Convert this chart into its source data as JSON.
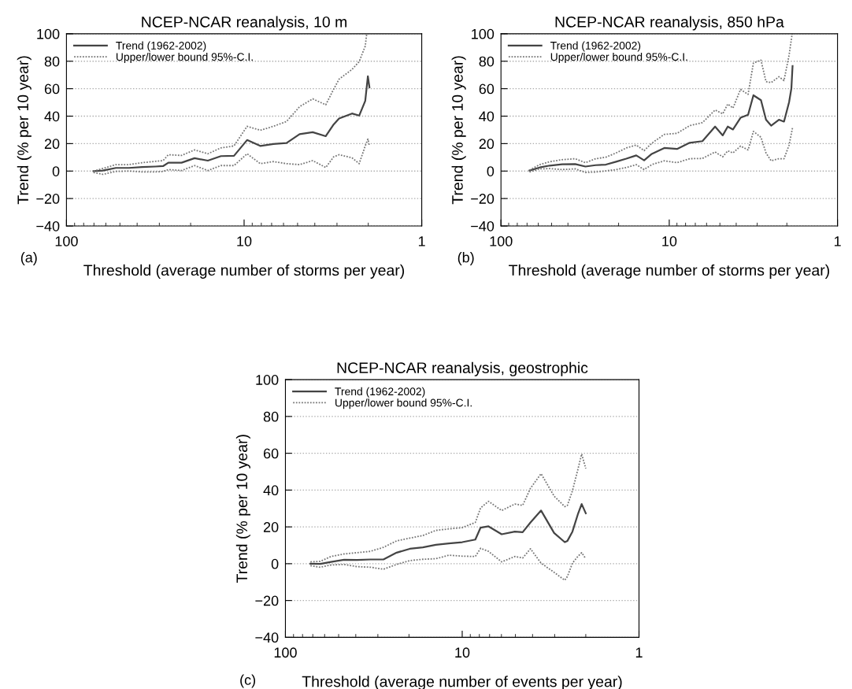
{
  "chart_data": [
    {
      "type": "line",
      "title": "NCEP-NCAR reanalysis, 10 m",
      "xlabel": "Threshold (average number of storms per year)",
      "ylabel": "Trend (% per 10 year)",
      "annotations": [
        "(a)"
      ],
      "log": "x",
      "xlim": [
        100,
        1
      ],
      "xticks": [
        100,
        10,
        1
      ],
      "ylim": [
        -40,
        100
      ],
      "yticks": [
        -40,
        -20,
        0,
        20,
        40,
        60,
        80,
        100
      ],
      "grid": "y",
      "legend": "top left",
      "series": [
        {
          "name": "Trend (1962-2002)",
          "color": "#444444",
          "line_style": "solid",
          "x": [
            70.4,
            62.5,
            52.7,
            44.5,
            37.5,
            31.6,
            28.6,
            26.7,
            22.5,
            19.0,
            16.0,
            13.5,
            11.4,
            9.62,
            8.11,
            6.84,
            5.77,
            4.87,
            4.11,
            3.47,
            3.13,
            2.92,
            2.47,
            2.25,
            2.08,
            2.01,
            1.97
          ],
          "values": [
            0,
            0.4,
            2.3,
            2.3,
            2.9,
            3.3,
            3.6,
            6.1,
            6.1,
            9.4,
            7.6,
            10.9,
            11.1,
            22.6,
            18.3,
            19.7,
            20.4,
            26.9,
            28.3,
            25.4,
            34,
            38.3,
            41.9,
            40.4,
            51.1,
            69,
            61
          ]
        },
        {
          "name": "Upper/lower bound 95%-C.I.",
          "color": "#777777",
          "line_style": "dotted",
          "x": [
            70.4,
            62.5,
            52.7,
            44.5,
            37.5,
            31.6,
            28.6,
            26.7,
            22.5,
            19.0,
            16.0,
            13.5,
            11.4,
            9.62,
            8.11,
            6.84,
            5.77,
            4.87,
            4.11,
            3.47,
            3.13,
            2.92,
            2.47,
            2.25,
            2.08,
            2.04
          ],
          "values": [
            0,
            1.9,
            4.7,
            4.7,
            6.1,
            7.1,
            7.6,
            11.9,
            11.4,
            15.4,
            12.6,
            16.9,
            18.3,
            32.6,
            29.7,
            32.6,
            36.1,
            46.9,
            52.6,
            48.3,
            59.7,
            66.9,
            74,
            79.7,
            91,
            100
          ]
        },
        {
          "color": "#777777",
          "line_style": "dotted",
          "x": [
            70.4,
            62.5,
            52.7,
            44.5,
            37.5,
            31.6,
            28.6,
            26.7,
            22.5,
            19.0,
            16.0,
            13.5,
            11.4,
            9.62,
            8.11,
            6.84,
            5.77,
            4.87,
            4.11,
            3.47,
            3.13,
            2.92,
            2.47,
            2.25,
            2.08,
            2.01,
            1.97
          ],
          "values": [
            -1,
            -2.4,
            -0.3,
            0,
            -0.6,
            -0.6,
            -0.3,
            1.1,
            0.4,
            4,
            0.4,
            4,
            4,
            12.6,
            5.4,
            6.9,
            5.4,
            4.7,
            7.6,
            2.6,
            10.4,
            11.9,
            9.7,
            5.4,
            18.3,
            23.3,
            18.3
          ]
        }
      ]
    },
    {
      "type": "line",
      "title": "NCEP-NCAR reanalysis, 850 hPa",
      "xlabel": "Threshold (average number of storms per year)",
      "ylabel": "Trend (% per 10 year)",
      "annotations": [
        "(b)"
      ],
      "log": "x",
      "xlim": [
        100,
        1
      ],
      "xticks": [
        100,
        10,
        1
      ],
      "ylim": [
        -40,
        100
      ],
      "yticks": [
        -40,
        -20,
        0,
        20,
        40,
        60,
        80,
        100
      ],
      "grid": "y",
      "legend": "top left",
      "series": [
        {
          "name": "Trend (1962-2002)",
          "color": "#444444",
          "line_style": "solid",
          "x": [
            67.7,
            58.9,
            51.3,
            43.3,
            36.2,
            31.5,
            27.4,
            23.8,
            20.7,
            18.0,
            15.7,
            14.1,
            12.7,
            10.7,
            8.99,
            7.56,
            6.35,
            5.34,
            4.81,
            4.49,
            4.18,
            3.77,
            3.4,
            3.16,
            2.85,
            2.66,
            2.48,
            2.23,
            2.08,
            1.94,
            1.88,
            1.85
          ],
          "values": [
            0.4,
            2.6,
            4,
            5,
            5.1,
            3.3,
            4.3,
            4.7,
            6.8,
            9,
            11.4,
            7.8,
            12.5,
            16.8,
            16.1,
            20.6,
            21.8,
            32.4,
            26,
            32.4,
            30.3,
            38.8,
            41,
            55.2,
            51.6,
            37.4,
            33.1,
            37.4,
            36,
            50.2,
            60.2,
            76.5
          ]
        },
        {
          "name": "Upper/lower bound 95%-C.I.",
          "color": "#777777",
          "line_style": "dotted",
          "x": [
            67.7,
            58.9,
            51.3,
            43.3,
            36.2,
            31.5,
            27.4,
            23.8,
            20.7,
            18.0,
            15.7,
            14.1,
            12.7,
            10.7,
            8.99,
            7.56,
            6.35,
            5.34,
            4.81,
            4.49,
            4.18,
            3.77,
            3.4,
            3.16,
            2.85,
            2.66,
            2.48,
            2.23,
            2.08,
            1.94,
            1.86
          ],
          "values": [
            0.7,
            4.7,
            6.8,
            8.3,
            9,
            6.1,
            9,
            10.1,
            13.2,
            16.8,
            18.9,
            14.9,
            20.3,
            26.7,
            27.5,
            33.1,
            35.3,
            44.5,
            41.7,
            48.8,
            45.9,
            59.5,
            55.9,
            78.7,
            80.8,
            65.1,
            64.4,
            68.7,
            65.9,
            84.4,
            100
          ]
        },
        {
          "color": "#777777",
          "line_style": "dotted",
          "x": [
            67.7,
            58.9,
            51.3,
            43.3,
            36.2,
            31.5,
            27.4,
            23.8,
            20.7,
            18.0,
            15.7,
            14.1,
            12.7,
            10.7,
            8.99,
            7.56,
            6.35,
            5.34,
            4.81,
            4.49,
            4.18,
            3.77,
            3.4,
            3.16,
            2.85,
            2.66,
            2.48,
            2.23,
            2.08,
            1.94,
            1.85
          ],
          "values": [
            -0.7,
            1.6,
            1.8,
            1.1,
            1.6,
            -1,
            -0.7,
            0.1,
            1.1,
            2.6,
            4.7,
            1.1,
            4.7,
            7.5,
            6.1,
            9,
            9.2,
            13.9,
            10.4,
            14.7,
            13.2,
            18.2,
            15.4,
            28.9,
            24.6,
            13.2,
            7.5,
            9,
            9,
            18.9,
            31.7
          ]
        }
      ]
    },
    {
      "type": "line",
      "title": "NCEP-NCAR reanalysis, geostrophic",
      "xlabel": "Threshold (average number of events per year)",
      "ylabel": "Trend (% per 10 year)",
      "annotations": [
        "(c)"
      ],
      "log": "x",
      "xlim": [
        100,
        1
      ],
      "xticks": [
        100,
        10,
        1
      ],
      "ylim": [
        -40,
        100
      ],
      "yticks": [
        -40,
        -20,
        0,
        20,
        40,
        60,
        80,
        100
      ],
      "grid": "y",
      "legend": "top left",
      "series": [
        {
          "name": "Trend (1962-2002)",
          "color": "#444444",
          "line_style": "solid",
          "x": [
            72.2,
            63.5,
            55.3,
            46.6,
            39.3,
            33.1,
            27.9,
            23.5,
            19.8,
            16.7,
            14.1,
            11.9,
            10,
            8.43,
            7.87,
            7.1,
            5.98,
            5.04,
            4.55,
            4.11,
            3.58,
            3.02,
            2.63,
            2.54,
            2.38,
            2.22,
            2.11,
            2.0
          ],
          "values": [
            0,
            -0.1,
            1,
            2.1,
            2,
            2.3,
            2.3,
            6,
            8.1,
            8.9,
            10.3,
            11,
            11.7,
            13.1,
            19.6,
            20.3,
            16,
            17.4,
            17.1,
            22.4,
            28.9,
            16.7,
            11.7,
            12.4,
            17.4,
            26.7,
            32.4,
            27.4
          ]
        },
        {
          "name": "Upper/lower bound 95%-C.I.",
          "color": "#777777",
          "line_style": "dotted",
          "x": [
            72.2,
            63.5,
            55.3,
            46.6,
            39.3,
            33.1,
            27.9,
            23.5,
            19.8,
            16.7,
            14.1,
            11.9,
            10,
            8.43,
            7.87,
            7.1,
            5.98,
            5.04,
            4.55,
            4.11,
            3.58,
            3.02,
            2.63,
            2.54,
            2.38,
            2.22,
            2.11,
            2.0
          ],
          "values": [
            1,
            1.3,
            3.9,
            5.3,
            6,
            6.7,
            8.9,
            12.4,
            13.9,
            15.3,
            18.1,
            18.9,
            19.6,
            22.4,
            30.3,
            33.9,
            28.9,
            32.4,
            31.7,
            41,
            48.9,
            36.7,
            31,
            31.7,
            39.6,
            51,
            59.6,
            51.7
          ]
        },
        {
          "color": "#777777",
          "line_style": "dotted",
          "x": [
            72.2,
            63.5,
            55.3,
            46.6,
            39.3,
            33.1,
            27.9,
            23.5,
            19.8,
            16.7,
            14.1,
            11.9,
            10,
            8.43,
            7.87,
            7.1,
            5.98,
            5.04,
            4.55,
            4.11,
            3.58,
            3.02,
            2.63,
            2.54,
            2.38,
            2.22,
            2.11,
            2.0
          ],
          "values": [
            -1.1,
            -1.9,
            -0.7,
            -0.4,
            -1.6,
            -1.9,
            -3,
            -0.4,
            1.7,
            2.4,
            2.7,
            4.6,
            4.1,
            3.9,
            8.4,
            6.7,
            1,
            3.9,
            3.1,
            8.1,
            0.3,
            -4.7,
            -9,
            -6.9,
            0.3,
            3.9,
            6,
            2.7
          ]
        }
      ]
    }
  ]
}
